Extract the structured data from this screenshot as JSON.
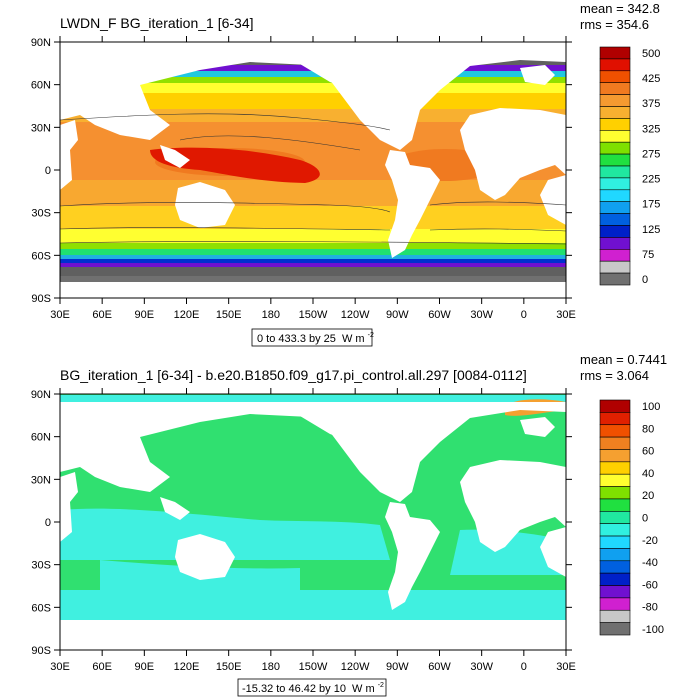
{
  "panels": [
    {
      "title": "LWDN_F BG_iteration_1 [6-34]",
      "mean": "mean = 342.8",
      "rms": "rms = 354.6",
      "range_label": "0 to 433.3 by 25",
      "units": "W m",
      "units_exp": "-2",
      "lat_labels": [
        "90N",
        "60N",
        "30N",
        "0",
        "30S",
        "60S",
        "90S"
      ],
      "lon_labels": [
        "30E",
        "60E",
        "90E",
        "120E",
        "150E",
        "180",
        "150W",
        "120W",
        "90W",
        "60W",
        "30W",
        "0",
        "30E"
      ],
      "colorbar": {
        "labels": [
          "500",
          "425",
          "375",
          "325",
          "275",
          "225",
          "175",
          "125",
          "75",
          "0"
        ],
        "colors": [
          "#b00000",
          "#e01000",
          "#f05000",
          "#f07a20",
          "#f59a30",
          "#f8b030",
          "#ffd000",
          "#ffff30",
          "#7fe000",
          "#20e040",
          "#20e8a0",
          "#30f0e0",
          "#20d8ff",
          "#10a0f0",
          "#0060e0",
          "#0020c8",
          "#7010d0",
          "#d020d0",
          "#c8c8c8",
          "#707070"
        ]
      }
    },
    {
      "title": "BG_iteration_1 [6-34] - b.e20.B1850.f09_g17.pi_control.all.297 [0084-0112]",
      "mean": "mean = 0.7441",
      "rms": "rms = 3.064",
      "range_label": "-15.32 to 46.42 by 10",
      "units": "W m",
      "units_exp": "-2",
      "lat_labels": [
        "90N",
        "60N",
        "30N",
        "0",
        "30S",
        "60S",
        "90S"
      ],
      "lon_labels": [
        "30E",
        "60E",
        "90E",
        "120E",
        "150E",
        "180",
        "150W",
        "120W",
        "90W",
        "60W",
        "30W",
        "0",
        "30E"
      ],
      "colorbar": {
        "labels": [
          "100",
          "80",
          "60",
          "40",
          "20",
          "0",
          "-20",
          "-40",
          "-60",
          "-80",
          "-100"
        ],
        "colors": [
          "#b00000",
          "#e02000",
          "#f05000",
          "#f08020",
          "#f5a030",
          "#ffd000",
          "#ffff30",
          "#7fe000",
          "#20e040",
          "#20e8a0",
          "#30f0e0",
          "#20d8ff",
          "#10a0f0",
          "#0060e0",
          "#0020c8",
          "#7010d0",
          "#d020d0",
          "#c8c8c8",
          "#707070"
        ]
      }
    }
  ]
}
